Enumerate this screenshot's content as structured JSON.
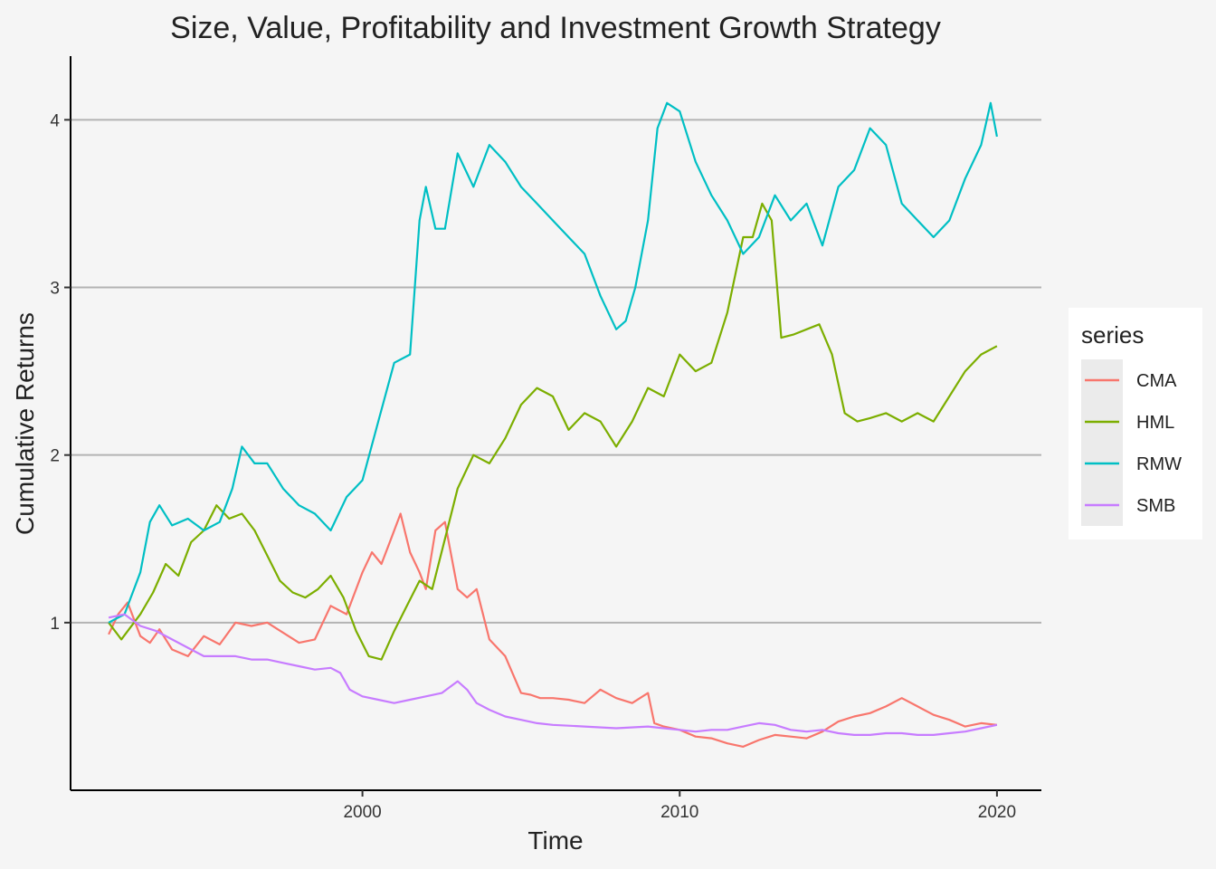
{
  "chart_data": {
    "type": "line",
    "title": "Size, Value, Profitability and Investment Growth Strategy",
    "xlabel": "Time",
    "ylabel": "Cumulative Returns",
    "xlim": [
      1990.8,
      2021.4
    ],
    "ylim": [
      0.0,
      4.38
    ],
    "x_ticks": [
      2000,
      2010,
      2020
    ],
    "x_tick_labels": [
      "2000",
      "2010",
      "2020"
    ],
    "y_ticks": [
      1,
      2,
      3,
      4
    ],
    "y_tick_labels": [
      "1",
      "2",
      "3",
      "4"
    ],
    "grid": "horizontal-major",
    "legend": {
      "title": "series",
      "position": "right"
    },
    "series": [
      {
        "name": "CMA",
        "color": "#F8766D",
        "x": [
          1992.0,
          1992.3,
          1992.6,
          1993.0,
          1993.3,
          1993.6,
          1994.0,
          1994.5,
          1995.0,
          1995.5,
          1996.0,
          1996.5,
          1997.0,
          1997.5,
          1998.0,
          1998.5,
          1999.0,
          1999.5,
          2000.0,
          2000.3,
          2000.6,
          2000.9,
          2001.2,
          2001.5,
          2001.8,
          2002.0,
          2002.3,
          2002.6,
          2003.0,
          2003.3,
          2003.6,
          2004.0,
          2004.5,
          2005.0,
          2005.3,
          2005.6,
          2006.0,
          2006.5,
          2007.0,
          2007.5,
          2008.0,
          2008.5,
          2009.0,
          2009.2,
          2009.5,
          2010.0,
          2010.5,
          2011.0,
          2011.5,
          2012.0,
          2012.5,
          2013.0,
          2013.5,
          2014.0,
          2014.5,
          2015.0,
          2015.5,
          2016.0,
          2016.5,
          2017.0,
          2017.5,
          2018.0,
          2018.5,
          2019.0,
          2019.5,
          2020.0
        ],
        "y": [
          0.93,
          1.05,
          1.12,
          0.92,
          0.88,
          0.96,
          0.84,
          0.8,
          0.92,
          0.87,
          1.0,
          0.98,
          1.0,
          0.94,
          0.88,
          0.9,
          1.1,
          1.05,
          1.3,
          1.42,
          1.35,
          1.5,
          1.65,
          1.42,
          1.3,
          1.2,
          1.55,
          1.6,
          1.2,
          1.15,
          1.2,
          0.9,
          0.8,
          0.58,
          0.57,
          0.55,
          0.55,
          0.54,
          0.52,
          0.6,
          0.55,
          0.52,
          0.58,
          0.4,
          0.38,
          0.36,
          0.32,
          0.31,
          0.28,
          0.26,
          0.3,
          0.33,
          0.32,
          0.31,
          0.35,
          0.41,
          0.44,
          0.46,
          0.5,
          0.55,
          0.5,
          0.45,
          0.42,
          0.38,
          0.4,
          0.39
        ]
      },
      {
        "name": "HML",
        "color": "#7CAE00",
        "x": [
          1992.0,
          1992.4,
          1993.0,
          1993.4,
          1993.8,
          1994.2,
          1994.6,
          1995.0,
          1995.4,
          1995.8,
          1996.2,
          1996.6,
          1997.0,
          1997.4,
          1997.8,
          1998.2,
          1998.6,
          1999.0,
          1999.4,
          1999.8,
          2000.2,
          2000.6,
          2001.0,
          2001.4,
          2001.8,
          2002.2,
          2002.6,
          2003.0,
          2003.5,
          2004.0,
          2004.5,
          2005.0,
          2005.5,
          2006.0,
          2006.5,
          2007.0,
          2007.5,
          2008.0,
          2008.5,
          2009.0,
          2009.5,
          2010.0,
          2010.5,
          2011.0,
          2011.5,
          2012.0,
          2012.3,
          2012.6,
          2012.9,
          2013.2,
          2013.6,
          2014.0,
          2014.4,
          2014.8,
          2015.2,
          2015.6,
          2016.0,
          2016.5,
          2017.0,
          2017.5,
          2018.0,
          2018.5,
          2019.0,
          2019.5,
          2020.0
        ],
        "y": [
          1.0,
          0.9,
          1.05,
          1.18,
          1.35,
          1.28,
          1.48,
          1.55,
          1.7,
          1.62,
          1.65,
          1.55,
          1.4,
          1.25,
          1.18,
          1.15,
          1.2,
          1.28,
          1.15,
          0.95,
          0.8,
          0.78,
          0.95,
          1.1,
          1.25,
          1.2,
          1.5,
          1.8,
          2.0,
          1.95,
          2.1,
          2.3,
          2.4,
          2.35,
          2.15,
          2.25,
          2.2,
          2.05,
          2.2,
          2.4,
          2.35,
          2.6,
          2.5,
          2.55,
          2.85,
          3.3,
          3.3,
          3.5,
          3.4,
          2.7,
          2.72,
          2.75,
          2.78,
          2.6,
          2.25,
          2.2,
          2.22,
          2.25,
          2.2,
          2.25,
          2.2,
          2.35,
          2.5,
          2.6,
          2.65
        ]
      },
      {
        "name": "RMW",
        "color": "#00BFC4",
        "x": [
          1992.0,
          1992.5,
          1993.0,
          1993.3,
          1993.6,
          1994.0,
          1994.5,
          1995.0,
          1995.5,
          1995.9,
          1996.2,
          1996.6,
          1997.0,
          1997.5,
          1998.0,
          1998.5,
          1999.0,
          1999.5,
          2000.0,
          2000.5,
          2001.0,
          2001.5,
          2001.8,
          2002.0,
          2002.3,
          2002.6,
          2003.0,
          2003.5,
          2004.0,
          2004.5,
          2005.0,
          2005.5,
          2006.0,
          2006.5,
          2007.0,
          2007.5,
          2008.0,
          2008.3,
          2008.6,
          2009.0,
          2009.3,
          2009.6,
          2010.0,
          2010.5,
          2011.0,
          2011.5,
          2012.0,
          2012.5,
          2013.0,
          2013.5,
          2014.0,
          2014.5,
          2015.0,
          2015.5,
          2016.0,
          2016.5,
          2017.0,
          2017.5,
          2018.0,
          2018.5,
          2019.0,
          2019.5,
          2019.8,
          2020.0
        ],
        "y": [
          1.0,
          1.05,
          1.3,
          1.6,
          1.7,
          1.58,
          1.62,
          1.55,
          1.6,
          1.8,
          2.05,
          1.95,
          1.95,
          1.8,
          1.7,
          1.65,
          1.55,
          1.75,
          1.85,
          2.2,
          2.55,
          2.6,
          3.4,
          3.6,
          3.35,
          3.35,
          3.8,
          3.6,
          3.85,
          3.75,
          3.6,
          3.5,
          3.4,
          3.3,
          3.2,
          2.95,
          2.75,
          2.8,
          3.0,
          3.4,
          3.95,
          4.1,
          4.05,
          3.75,
          3.55,
          3.4,
          3.2,
          3.3,
          3.55,
          3.4,
          3.5,
          3.25,
          3.6,
          3.7,
          3.95,
          3.85,
          3.5,
          3.4,
          3.3,
          3.4,
          3.65,
          3.85,
          4.1,
          3.9
        ]
      },
      {
        "name": "SMB",
        "color": "#C77CFF",
        "x": [
          1992.0,
          1992.5,
          1993.0,
          1993.5,
          1994.0,
          1994.5,
          1995.0,
          1995.5,
          1996.0,
          1996.5,
          1997.0,
          1997.5,
          1998.0,
          1998.5,
          1999.0,
          1999.3,
          1999.6,
          2000.0,
          2000.5,
          2001.0,
          2001.5,
          2002.0,
          2002.5,
          2003.0,
          2003.3,
          2003.6,
          2004.0,
          2004.5,
          2005.0,
          2005.5,
          2006.0,
          2007.0,
          2008.0,
          2009.0,
          2009.5,
          2010.0,
          2010.5,
          2011.0,
          2011.5,
          2012.0,
          2012.5,
          2013.0,
          2013.5,
          2014.0,
          2014.5,
          2015.0,
          2015.5,
          2016.0,
          2016.5,
          2017.0,
          2017.5,
          2018.0,
          2018.5,
          2019.0,
          2019.5,
          2020.0
        ],
        "y": [
          1.03,
          1.05,
          0.98,
          0.95,
          0.9,
          0.85,
          0.8,
          0.8,
          0.8,
          0.78,
          0.78,
          0.76,
          0.74,
          0.72,
          0.73,
          0.7,
          0.6,
          0.56,
          0.54,
          0.52,
          0.54,
          0.56,
          0.58,
          0.65,
          0.6,
          0.52,
          0.48,
          0.44,
          0.42,
          0.4,
          0.39,
          0.38,
          0.37,
          0.38,
          0.37,
          0.36,
          0.35,
          0.36,
          0.36,
          0.38,
          0.4,
          0.39,
          0.36,
          0.35,
          0.36,
          0.34,
          0.33,
          0.33,
          0.34,
          0.34,
          0.33,
          0.33,
          0.34,
          0.35,
          0.37,
          0.39
        ]
      }
    ]
  }
}
